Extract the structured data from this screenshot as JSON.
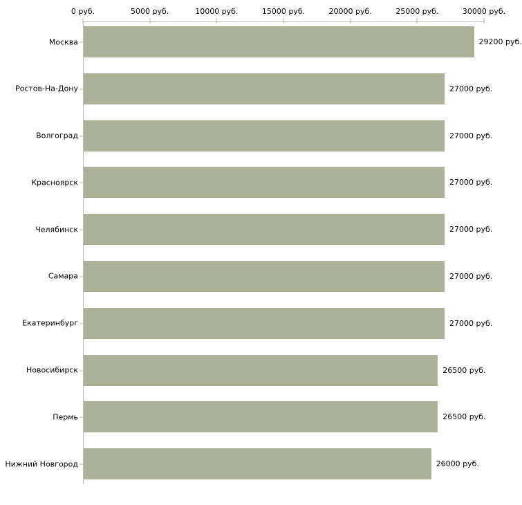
{
  "chart_data": {
    "type": "bar",
    "orientation": "horizontal",
    "title": "",
    "xlabel": "",
    "ylabel": "",
    "unit": "руб.",
    "xlim": [
      0,
      30000
    ],
    "grid": false,
    "legend": false,
    "categories": [
      "Москва",
      "Ростов-На-Дону",
      "Волгоград",
      "Красноярск",
      "Челябинск",
      "Самара",
      "Екатеринбург",
      "Новосибирск",
      "Пермь",
      "Нижний Новгород"
    ],
    "values": [
      29200,
      27000,
      27000,
      27000,
      27000,
      27000,
      27000,
      26500,
      26500,
      26000
    ],
    "value_labels": [
      "29200 руб.",
      "27000 руб.",
      "27000 руб.",
      "27000 руб.",
      "27000 руб.",
      "27000 руб.",
      "27000 руб.",
      "26500 руб.",
      "26500 руб.",
      "26000 руб."
    ],
    "x_ticks": [
      0,
      5000,
      10000,
      15000,
      20000,
      25000,
      30000
    ],
    "x_tick_labels": [
      "0 руб.",
      "5000 руб.",
      "10000 руб.",
      "15000 руб.",
      "20000 руб.",
      "25000 руб.",
      "30000 руб."
    ],
    "colors": {
      "bar": "#acb298",
      "axis_line": "#b8b8b8",
      "tick_mark": "#d9dcc5",
      "text": "#000000"
    }
  }
}
